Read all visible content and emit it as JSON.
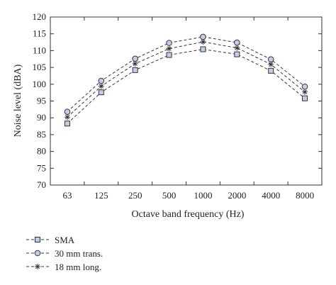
{
  "chart_data": {
    "type": "line",
    "xlabel": "Octave band frequency (Hz)",
    "ylabel": "Noise level (dBA)",
    "categories": [
      "63",
      "125",
      "250",
      "500",
      "1000",
      "2000",
      "4000",
      "8000"
    ],
    "ylim": [
      70,
      120
    ],
    "yticks": [
      "70",
      "75",
      "80",
      "85",
      "90",
      "95",
      "100",
      "105",
      "110",
      "115",
      "120"
    ],
    "grid": false,
    "legend_position": "bottom-left",
    "series": [
      {
        "name": "SMA",
        "marker": "square",
        "color": "#333333",
        "marker_fill": "#bfcfe6",
        "values": [
          88.3,
          97.6,
          104.2,
          108.7,
          110.4,
          108.9,
          104.0,
          95.8
        ]
      },
      {
        "name": "30 mm trans.",
        "marker": "circle",
        "color": "#333333",
        "marker_fill": "#bfcfe6",
        "values": [
          91.8,
          101.0,
          107.6,
          112.3,
          114.1,
          112.4,
          107.4,
          99.3
        ]
      },
      {
        "name": "18 mm long.",
        "marker": "star",
        "color": "#333333",
        "marker_fill": "none",
        "values": [
          90.2,
          99.4,
          106.1,
          110.6,
          112.6,
          110.8,
          105.9,
          97.7
        ]
      }
    ]
  }
}
